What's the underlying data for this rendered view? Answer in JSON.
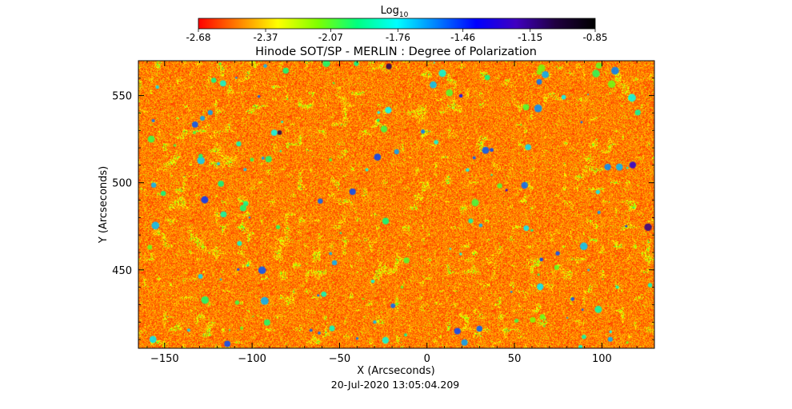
{
  "chart_data": {
    "type": "heatmap",
    "title": "Hinode SOT/SP - MERLIN : Degree of Polarization",
    "colorbar": {
      "label_base": "Log",
      "label_subscript": "10",
      "ticks": [
        "-2.68",
        "-2.37",
        "-2.07",
        "-1.76",
        "-1.46",
        "-1.15",
        "-0.85"
      ],
      "range": [
        -2.68,
        -0.85
      ],
      "colormap": [
        "#ff0000",
        "#ff8000",
        "#ffff00",
        "#80ff00",
        "#00ff80",
        "#00ffff",
        "#0080ff",
        "#0000ff",
        "#4000c0",
        "#200040",
        "#000000"
      ]
    },
    "xlabel": "X (Arcseconds)",
    "ylabel": "Y (Arcseconds)",
    "xlim": [
      -165,
      130
    ],
    "ylim": [
      405,
      570
    ],
    "xticks": [
      -150,
      -100,
      -50,
      0,
      50,
      100
    ],
    "yticks": [
      450,
      500,
      550
    ],
    "field_value_range": [
      -2.68,
      -1.6
    ],
    "dominant_value": -2.68,
    "grid": false
  },
  "footer": {
    "timestamp": "20-Jul-2020 13:05:04.209"
  }
}
